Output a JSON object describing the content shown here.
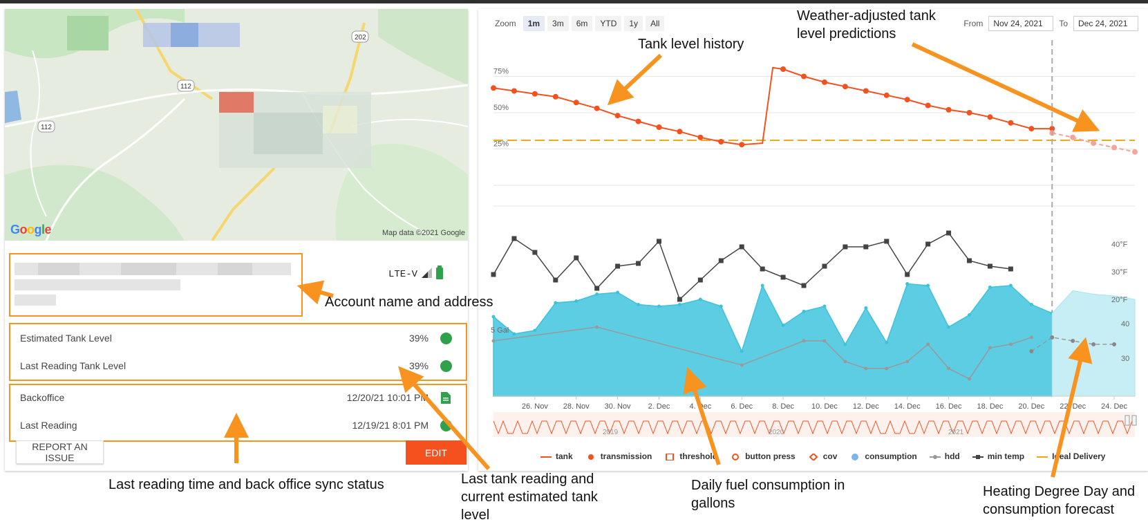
{
  "map": {
    "logo": "Google",
    "copyright": "Map data ©2021 Google",
    "road_labels": [
      "202",
      "112",
      "112"
    ]
  },
  "account": {
    "network": "LTE-V"
  },
  "levels": {
    "estimated_label": "Estimated Tank Level",
    "estimated_value": "39%",
    "last_label": "Last Reading Tank Level",
    "last_value": "39%"
  },
  "sync": {
    "backoffice_label": "Backoffice",
    "backoffice_value": "12/20/21 10:01 PM",
    "last_reading_label": "Last Reading",
    "last_reading_value": "12/19/21 8:01 PM"
  },
  "buttons": {
    "report": "REPORT AN ISSUE",
    "edit": "EDIT"
  },
  "chart": {
    "zoom_label": "Zoom",
    "zoom_options": [
      "1m",
      "3m",
      "6m",
      "YTD",
      "1y",
      "All"
    ],
    "zoom_active": "1m",
    "from_label": "From",
    "from_value": "Nov 24, 2021",
    "to_label": "To",
    "to_value": "Dec 24, 2021",
    "legend": [
      "tank",
      "transmission",
      "threshold",
      "button press",
      "cov",
      "consumption",
      "hdd",
      "min temp",
      "Ideal Delivery"
    ],
    "navigator_years": [
      "2019",
      "2020",
      "2021"
    ]
  },
  "chart_data": {
    "type": "line",
    "x_tick_labels": [
      "26. Nov",
      "28. Nov",
      "30. Nov",
      "2. Dec",
      "4. Dec",
      "6. Dec",
      "8. Dec",
      "10. Dec",
      "12. Dec",
      "14. Dec",
      "16. Dec",
      "18. Dec",
      "20. Dec",
      "22. Dec",
      "24. Dec"
    ],
    "x_days": [
      24,
      25,
      26,
      27,
      28,
      29,
      30,
      31,
      32,
      33,
      34,
      35,
      36,
      37,
      38,
      39,
      40,
      41,
      42,
      43,
      44,
      45,
      46,
      47,
      48,
      49,
      50,
      51,
      52,
      53,
      54
    ],
    "tank_level_y_ticks": [
      "75%",
      "50%",
      "25%"
    ],
    "tank_level_ylim": [
      0,
      100
    ],
    "temp_y_ticks": [
      "40°F",
      "30°F",
      "20°F"
    ],
    "hdd_y_ticks": [
      "40",
      "30"
    ],
    "consumption_y_tick": "5 Gal",
    "ideal_delivery_level_pct": 31,
    "series": [
      {
        "name": "tank",
        "color": "#f4511e",
        "x": [
          24,
          25,
          26,
          27,
          28,
          29,
          30,
          31,
          32,
          33,
          34,
          35,
          36,
          37,
          37.5,
          38,
          39,
          40,
          41,
          42,
          43,
          44,
          45,
          46,
          47,
          48,
          49,
          50,
          51
        ],
        "values": [
          67,
          65,
          63,
          61,
          57,
          53,
          48,
          44,
          40,
          37,
          33,
          30,
          28,
          29,
          81,
          80,
          75,
          71,
          68,
          65,
          62,
          59,
          55,
          52,
          50,
          47,
          43,
          39,
          39
        ]
      },
      {
        "name": "tank forecast",
        "color": "#f6a39a",
        "x": [
          51,
          52,
          53,
          54,
          55
        ],
        "values": [
          36,
          33,
          29,
          26,
          23
        ]
      },
      {
        "name": "min temp",
        "color": "#444444",
        "x": [
          24,
          25,
          26,
          27,
          28,
          29,
          30,
          31,
          32,
          33,
          34,
          35,
          36,
          37,
          38,
          39,
          40,
          41,
          42,
          43,
          44,
          45,
          46,
          47,
          48,
          49
        ],
        "values": [
          29,
          42,
          37,
          27,
          35,
          24,
          32,
          33,
          41,
          20,
          27,
          34,
          39,
          31,
          28,
          25,
          32,
          39,
          39,
          41,
          29,
          40,
          44,
          34,
          32,
          31
        ]
      },
      {
        "name": "consumption",
        "color": "#3cc3dc",
        "x": [
          24,
          25,
          26,
          27,
          28,
          29,
          30,
          31,
          32,
          33,
          34,
          35,
          36,
          37,
          38,
          39,
          40,
          41,
          42,
          43,
          44,
          45,
          46,
          47,
          48,
          49,
          50,
          51
        ],
        "values": [
          4.6,
          3.6,
          3.8,
          5.4,
          5.5,
          5.9,
          6.0,
          5.3,
          5.2,
          5.3,
          5.6,
          5.2,
          2.6,
          6.4,
          4.1,
          4.9,
          5.2,
          3.0,
          5.1,
          3.1,
          6.5,
          6.4,
          4.0,
          4.7,
          6.3,
          6.4,
          5.3,
          4.8
        ]
      },
      {
        "name": "consumption forecast",
        "color": "#c8eef5",
        "x": [
          51,
          52,
          53,
          54,
          55
        ],
        "values": [
          4.8,
          6.1,
          5.9,
          5.8,
          5.6
        ]
      },
      {
        "name": "hdd",
        "color": "#999999",
        "x": [
          24,
          29,
          36,
          39,
          40,
          41,
          42,
          43,
          44,
          45,
          46,
          47,
          48,
          49,
          50
        ],
        "values": [
          35,
          39,
          28,
          35,
          35,
          29,
          27,
          27,
          29,
          34,
          27,
          24,
          33,
          34,
          36
        ]
      },
      {
        "name": "hdd forecast",
        "color": "#999999",
        "x": [
          50,
          51,
          52,
          53,
          54
        ],
        "values": [
          32,
          36,
          35,
          34,
          34
        ]
      }
    ]
  },
  "annotations": {
    "account": "Account name and address",
    "tank_history": "Tank level history",
    "predictions_line1": "Weather-adjusted tank",
    "predictions_line2": "level predictions",
    "sync_status": "Last reading time and back office sync status",
    "last_reading_line1": "Last tank reading and",
    "last_reading_line2": "current estimated tank",
    "last_reading_line3": "level",
    "daily_line1": "Daily fuel consumption in",
    "daily_line2": "gallons",
    "hdd_line1": "Heating Degree Day and",
    "hdd_line2": "consumption forecast"
  }
}
